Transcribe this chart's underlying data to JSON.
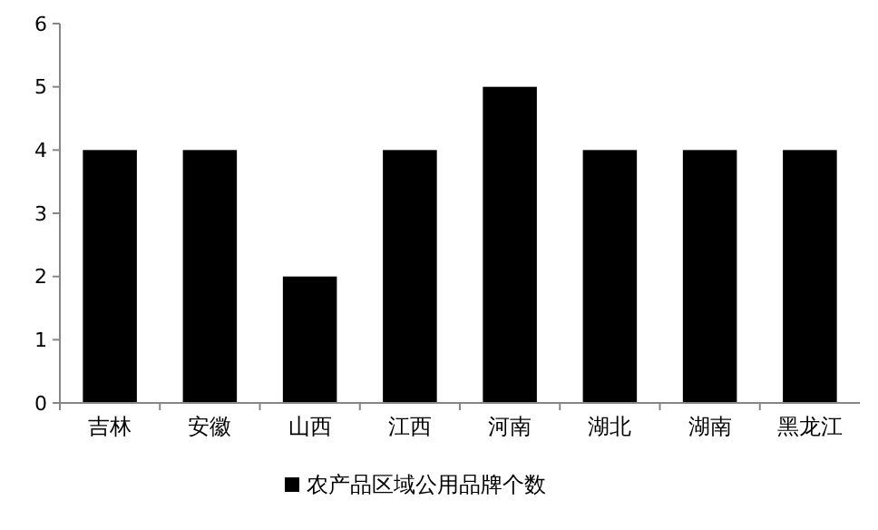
{
  "chart_data": {
    "type": "bar",
    "categories": [
      "吉林",
      "安徽",
      "山西",
      "江西",
      "河南",
      "湖北",
      "湖南",
      "黑龙江"
    ],
    "series": [
      {
        "name": "农产品区域公用品牌个数",
        "color": "#000000",
        "values": [
          4,
          4,
          2,
          4,
          5,
          4,
          4,
          4
        ]
      }
    ],
    "ylim": [
      0,
      6
    ],
    "yticks": [
      0,
      1,
      2,
      3,
      4,
      5,
      6
    ],
    "grid": false,
    "legend": "bottom"
  }
}
